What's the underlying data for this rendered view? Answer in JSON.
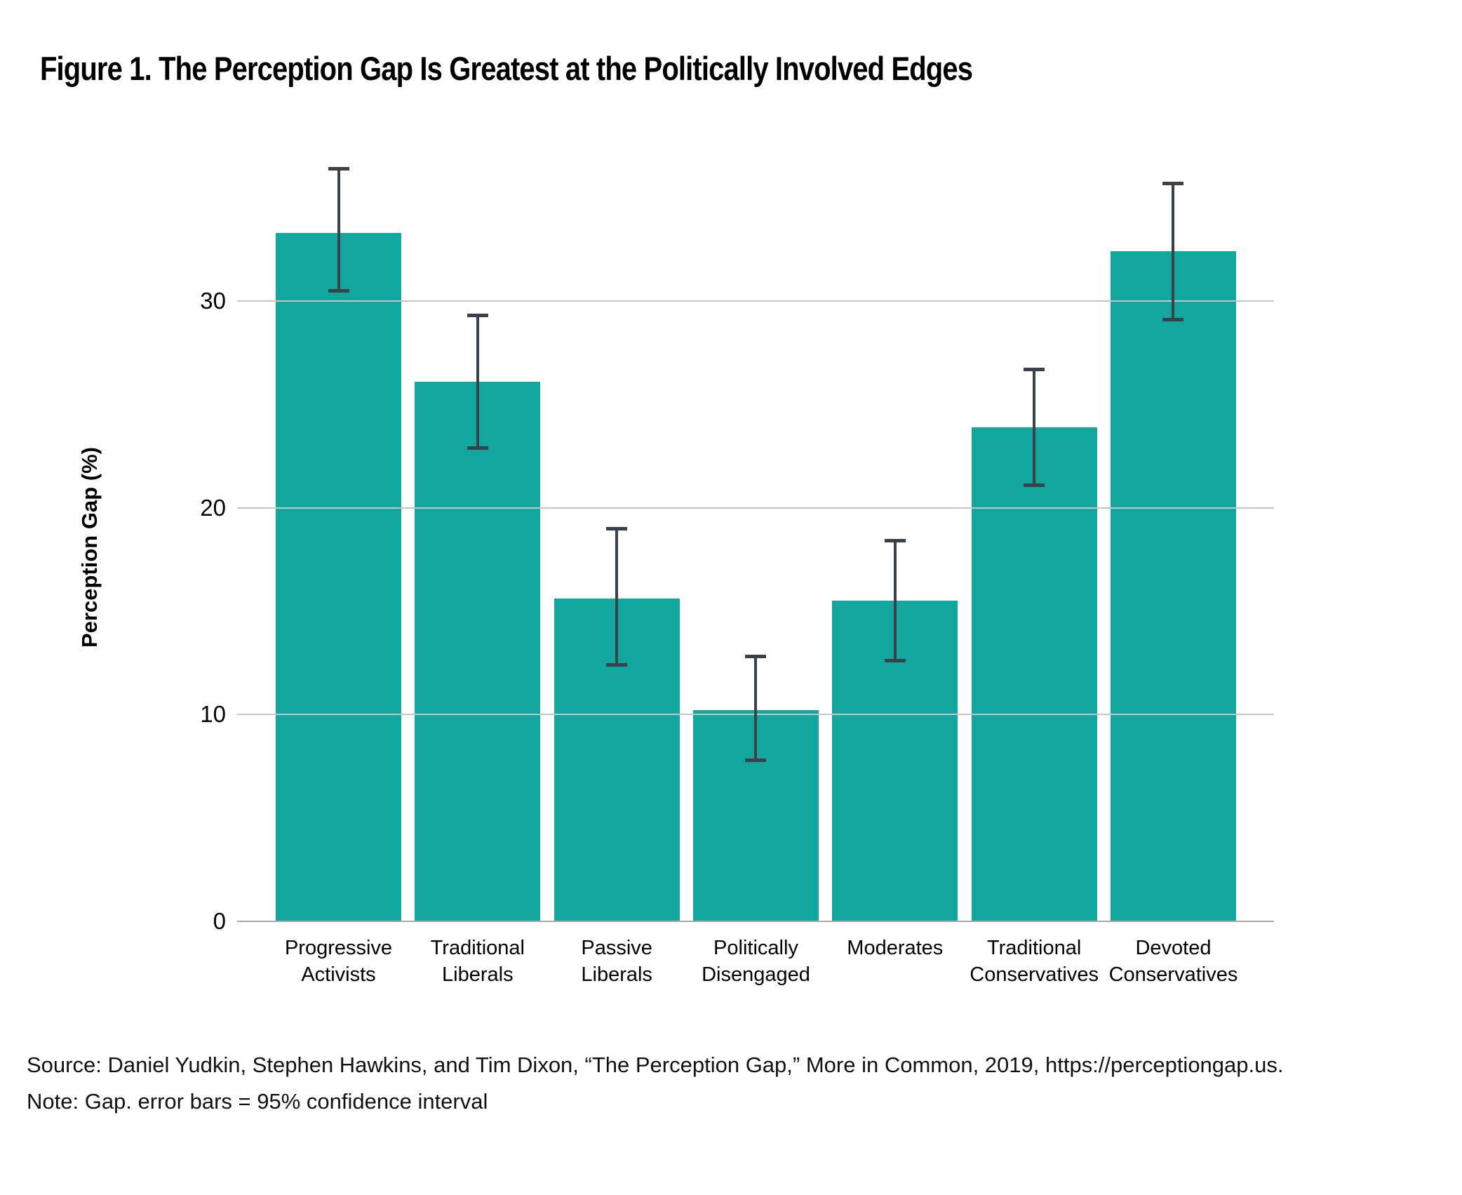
{
  "chart_data": {
    "type": "bar",
    "title": "Figure 1. The Perception Gap Is Greatest at the Politically Involved Edges",
    "xlabel": "",
    "ylabel": "Perception Gap (%)",
    "ylim": [
      0,
      37
    ],
    "yticks": [
      0,
      10,
      20,
      30
    ],
    "grid": true,
    "legend": null,
    "bar_color": "#12A79E",
    "error_bar_color": "#3A414B",
    "grid_color": "#C6C6C6",
    "categories": [
      "Progressive Activists",
      "Traditional Liberals",
      "Passive Liberals",
      "Politically Disengaged",
      "Moderates",
      "Traditional Conservatives",
      "Devoted Conservatives"
    ],
    "values": [
      33.3,
      26.1,
      15.6,
      10.2,
      15.5,
      23.9,
      32.4
    ],
    "ci_low": [
      30.5,
      22.9,
      12.4,
      7.8,
      12.6,
      21.1,
      29.1
    ],
    "ci_high": [
      36.4,
      29.3,
      19.0,
      12.8,
      18.4,
      26.7,
      35.7
    ],
    "error_bars": "95% confidence interval"
  },
  "footer": {
    "source": "Source: Daniel Yudkin, Stephen Hawkins, and Tim Dixon, “The Perception Gap,” More in Common, 2019, https://perceptiongap.us.",
    "note": "Note: Gap. error bars = 95% confidence interval"
  }
}
